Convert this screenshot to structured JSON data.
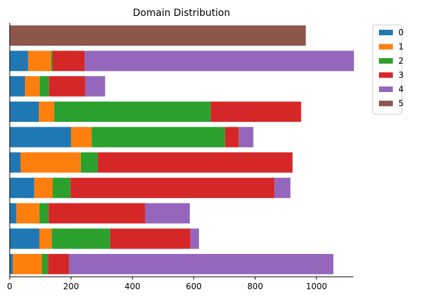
{
  "chart_data": {
    "type": "bar",
    "orientation": "horizontal",
    "stacked": true,
    "title": "Domain Distribution",
    "xlabel": "",
    "ylabel": "",
    "xlim": [
      0,
      1120
    ],
    "xticks": [
      0,
      200,
      400,
      600,
      800,
      1000
    ],
    "grid": false,
    "legend": {
      "position": "top-right, outside"
    },
    "bars": 10,
    "series": [
      {
        "name": "0",
        "color": "#1f77b4",
        "values": [
          0,
          60,
          50,
          95,
          200,
          35,
          80,
          22,
          97,
          10
        ]
      },
      {
        "name": "1",
        "color": "#ff7f0e",
        "values": [
          0,
          75,
          48,
          50,
          67,
          197,
          60,
          75,
          40,
          95
        ]
      },
      {
        "name": "2",
        "color": "#2ca02c",
        "values": [
          0,
          5,
          30,
          510,
          435,
          55,
          58,
          30,
          190,
          20
        ]
      },
      {
        "name": "3",
        "color": "#d62728",
        "values": [
          0,
          104,
          118,
          295,
          45,
          635,
          665,
          315,
          262,
          68
        ]
      },
      {
        "name": "4",
        "color": "#9467bd",
        "values": [
          0,
          878,
          65,
          0,
          47,
          0,
          52,
          145,
          28,
          862
        ]
      },
      {
        "name": "5",
        "color": "#8c564b",
        "values": [
          965,
          0,
          0,
          0,
          0,
          0,
          0,
          0,
          0,
          0
        ]
      }
    ]
  }
}
